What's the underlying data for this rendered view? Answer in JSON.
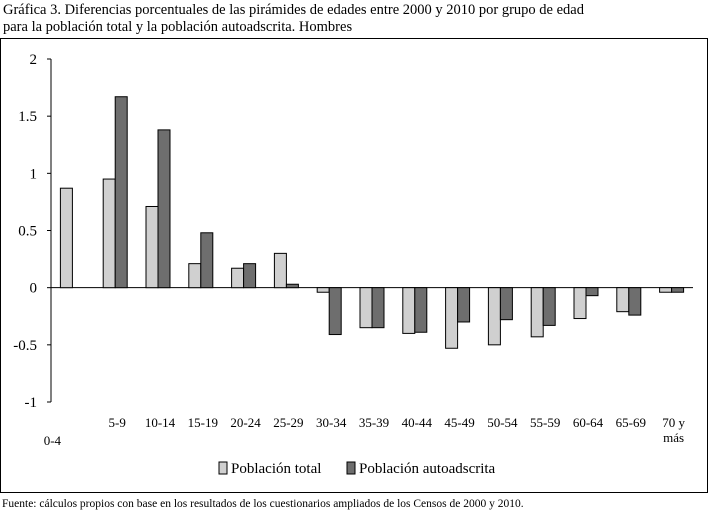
{
  "title_line1": "Gráfica 3.  Diferencias porcentuales de las pirámides de edades entre 2000 y 2010 por grupo de edad",
  "title_line2": "para la población total y la población autoadscrita. Hombres",
  "footnote": "Fuente: cálculos propios con base en los resultados de los cuestionarios ampliados de los Censos de 2000 y 2010.",
  "chart_data": {
    "type": "bar",
    "title": "Diferencias porcentuales de las pirámides de edades entre 2000 y 2010 por grupo de edad para la población total y la población autoadscrita. Hombres",
    "xlabel": "",
    "ylabel": "",
    "ylim": [
      -1,
      2
    ],
    "yticks": [
      "2",
      "1.5",
      "1",
      "0.5",
      "0",
      "-0.5",
      "-1"
    ],
    "ytick_values": [
      2,
      1.5,
      1,
      0.5,
      0,
      -0.5,
      -1
    ],
    "categories": [
      "0-4",
      "5-9",
      "10-14",
      "15-19",
      "20-24",
      "25-29",
      "30-34",
      "35-39",
      "40-44",
      "45-49",
      "50-54",
      "55-59",
      "60-64",
      "65-69",
      "70 y más"
    ],
    "category_lines": [
      [
        "0-4"
      ],
      [
        "5-9"
      ],
      [
        "10-14"
      ],
      [
        "15-19"
      ],
      [
        "20-24"
      ],
      [
        "25-29"
      ],
      [
        "30-34"
      ],
      [
        "35-39"
      ],
      [
        "40-44"
      ],
      [
        "45-49"
      ],
      [
        "50-54"
      ],
      [
        "55-59"
      ],
      [
        "60-64"
      ],
      [
        "65-69"
      ],
      [
        "70 y",
        "más"
      ]
    ],
    "series": [
      {
        "name": "Población total",
        "color": "#d0d0d0",
        "values": [
          0.87,
          0.95,
          0.71,
          0.21,
          0.17,
          0.3,
          -0.04,
          -0.35,
          -0.4,
          -0.53,
          -0.5,
          -0.43,
          -0.27,
          -0.21,
          -0.04
        ]
      },
      {
        "name": "Población autoadscrita",
        "color": "#6e6e6e",
        "values": [
          0.0,
          1.67,
          1.38,
          0.48,
          0.21,
          0.03,
          -0.41,
          -0.35,
          -0.39,
          -0.3,
          -0.28,
          -0.33,
          -0.07,
          -0.24,
          -0.04
        ]
      }
    ],
    "legend_position": "bottom"
  }
}
